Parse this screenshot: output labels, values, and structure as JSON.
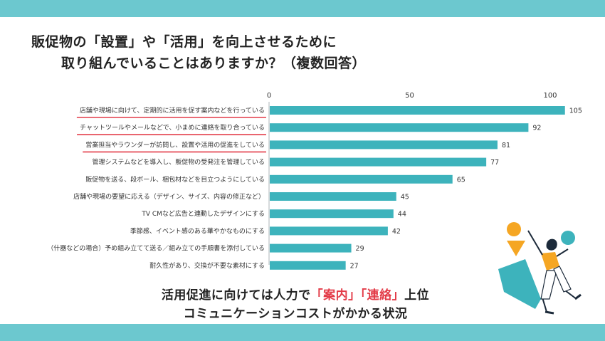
{
  "colors": {
    "band": "#6cc8cf",
    "bar": "#3db3bc",
    "underline": "#e33b48",
    "highlight": "#e33b48",
    "figure_shirt": "#f5a623",
    "figure_teal": "#3db3bc",
    "figure_dark": "#1c2a3a"
  },
  "header": {
    "title_line1": "販促物の「設置」や「活用」を向上させるために",
    "title_line2": "取り組んでいることはありますか？（複数回答）"
  },
  "chart_data": {
    "type": "bar",
    "orientation": "horizontal",
    "title": "販促物の「設置」や「活用」を向上させるために取り組んでいることはありますか？（複数回答）",
    "xlim": [
      0,
      105
    ],
    "xticks": [
      0,
      50,
      100
    ],
    "categories": [
      "店舗や現場に向けて、定期的に活用を促す案内などを行っている",
      "チャットツールやメールなどで、小まめに連絡を取り合っている",
      "営業担当やラウンダーが訪問し、設置や活用の促進をしている",
      "管理システムなどを導入し、販促物の受発注を管理している",
      "販促物を送る、段ボール、梱包材などを目立つようにしている",
      "店舗や現場の要望に応える（デザイン、サイズ、内容の修正など）",
      "TV CMなど広告と連動したデザインにする",
      "季節感、イベント感のある華やかなものにする",
      "（什器などの場合）予め組み立てて送る／組み立ての手順書を添付している",
      "耐久性があり、交換が不要な素材にする"
    ],
    "values": [
      105,
      92,
      81,
      77,
      65,
      45,
      44,
      42,
      29,
      27
    ],
    "underlined": [
      true,
      true,
      true,
      false,
      false,
      false,
      false,
      false,
      false,
      false
    ]
  },
  "conclusion": {
    "line1_pre": "活用促進に向けては人力で",
    "line1_hl1": "「案内」",
    "line1_hl2": "「連絡」",
    "line1_post": "上位",
    "line2": "コミュニケーションコストがかかる状況"
  }
}
